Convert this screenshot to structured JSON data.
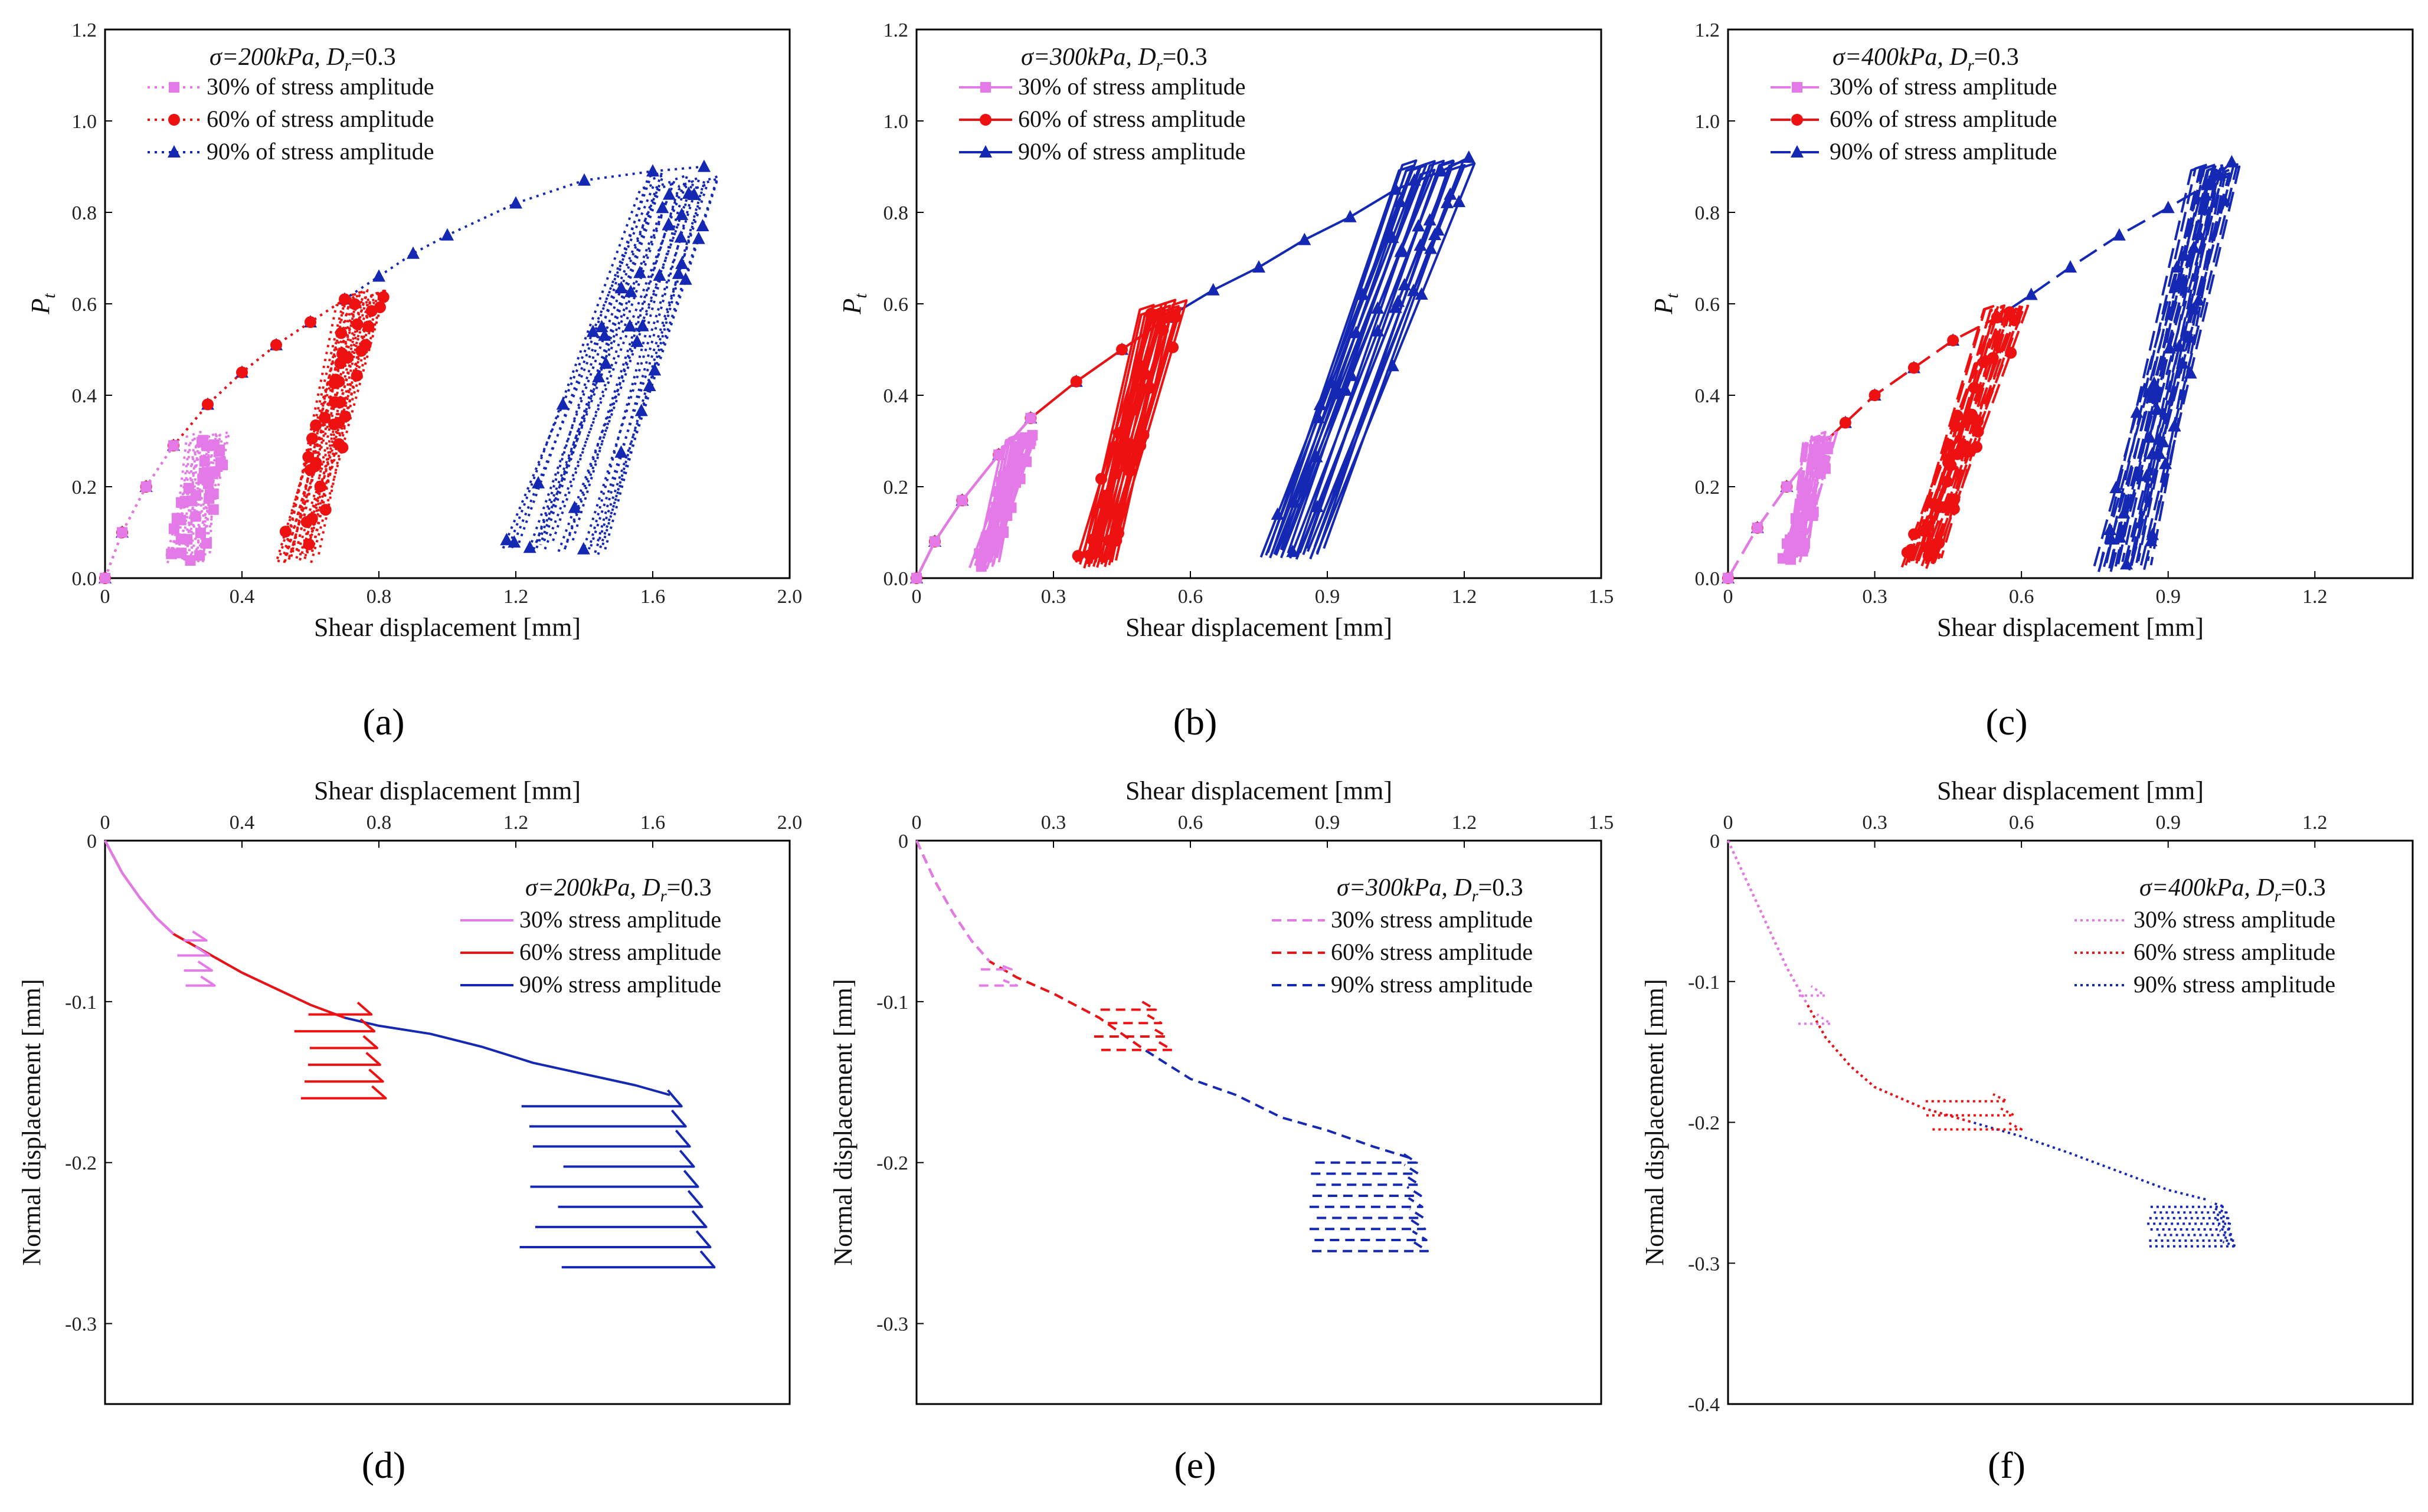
{
  "figure": {
    "panels": {
      "a": {
        "label": "(a)",
        "condition": "σ=200kPa, D",
        "condition_sub": "r",
        "condition_tail": "=0.3"
      },
      "b": {
        "label": "(b)",
        "condition": "σ=300kPa, D",
        "condition_sub": "r",
        "condition_tail": "=0.3"
      },
      "c": {
        "label": "(c)",
        "condition": "σ=400kPa, D",
        "condition_sub": "r",
        "condition_tail": "=0.3"
      },
      "d": {
        "label": "(d)",
        "condition": "σ=200kPa, D",
        "condition_sub": "r",
        "condition_tail": "=0.3"
      },
      "e": {
        "label": "(e)",
        "condition": "σ=300kPa, D",
        "condition_sub": "r",
        "condition_tail": "=0.3"
      },
      "f": {
        "label": "(f)",
        "condition": "σ=400kPa, D",
        "condition_sub": "r",
        "condition_tail": "=0.3"
      }
    },
    "labels": {
      "shear": "Shear displacement [mm]",
      "normal": "Normal displacement [mm]",
      "pt": "P",
      "pt_sub": "t"
    },
    "legend_top": [
      "30% of stress amplitude",
      "60% of stress amplitude",
      "90% of stress amplitude"
    ],
    "legend_bottom": [
      "30% stress amplitude",
      "60% stress amplitude",
      "90% stress amplitude"
    ],
    "colors": {
      "s30": "#e47ae8",
      "s60": "#ee1111",
      "s90": "#1428b4"
    }
  },
  "chart_data": [
    {
      "panel": "a",
      "type": "line",
      "style": "dotted-markers",
      "xlabel": "Shear displacement [mm]",
      "ylabel": "Pt",
      "xlim": [
        0,
        2.0
      ],
      "ylim": [
        0,
        1.2
      ],
      "xticks": [
        "0",
        "0.4",
        "0.8",
        "1.2",
        "1.6",
        "2.0"
      ],
      "yticks": [
        "0.0",
        "0.2",
        "0.4",
        "0.6",
        "0.8",
        "1.0",
        "1.2"
      ],
      "backbone": {
        "x": [
          0,
          0.05,
          0.12,
          0.2,
          0.3,
          0.4,
          0.5,
          0.6,
          0.7,
          0.8,
          0.9,
          1.0,
          1.2,
          1.4,
          1.6,
          1.75
        ],
        "y": [
          0,
          0.1,
          0.2,
          0.29,
          0.38,
          0.45,
          0.51,
          0.56,
          0.61,
          0.66,
          0.71,
          0.75,
          0.82,
          0.87,
          0.89,
          0.9
        ]
      },
      "series": [
        {
          "name": "30% of stress amplitude",
          "stop": 0.26,
          "band": {
            "x_low": [
              0.18,
              0.28
            ],
            "x_high": [
              0.28,
              0.36
            ],
            "ymin": 0.03,
            "ymax": 0.32
          }
        },
        {
          "name": "60% of stress amplitude",
          "stop": 0.74,
          "band": {
            "x_low": [
              0.5,
              0.6
            ],
            "x_high": [
              0.72,
              0.82
            ],
            "ymin": 0.03,
            "ymax": 0.63
          }
        },
        {
          "name": "90% of stress amplitude",
          "stop": 1.75,
          "band": {
            "x_low": [
              1.18,
              1.45
            ],
            "x_high": [
              1.6,
              1.8
            ],
            "ymin": 0.05,
            "ymax": 0.89
          }
        }
      ]
    },
    {
      "panel": "b",
      "type": "line",
      "style": "solid-markers",
      "xlabel": "Shear displacement [mm]",
      "ylabel": "Pt",
      "xlim": [
        0,
        1.5
      ],
      "ylim": [
        0,
        1.2
      ],
      "xticks": [
        "0",
        "0.3",
        "0.6",
        "0.9",
        "1.2",
        "1.5"
      ],
      "yticks": [
        "0.0",
        "0.2",
        "0.4",
        "0.6",
        "0.8",
        "1.0",
        "1.2"
      ],
      "backbone": {
        "x": [
          0,
          0.04,
          0.1,
          0.18,
          0.25,
          0.35,
          0.45,
          0.55,
          0.65,
          0.75,
          0.85,
          0.95,
          1.05,
          1.15,
          1.21
        ],
        "y": [
          0,
          0.08,
          0.17,
          0.27,
          0.35,
          0.43,
          0.5,
          0.57,
          0.63,
          0.68,
          0.74,
          0.79,
          0.85,
          0.89,
          0.92
        ]
      },
      "series": [
        {
          "name": "30% of stress amplitude",
          "stop": 0.25,
          "band": {
            "x_low": [
              0.12,
              0.17
            ],
            "x_high": [
              0.22,
              0.26
            ],
            "ymin": 0.02,
            "ymax": 0.32
          }
        },
        {
          "name": "60% of stress amplitude",
          "stop": 0.58,
          "band": {
            "x_low": [
              0.35,
              0.42
            ],
            "x_high": [
              0.52,
              0.59
            ],
            "ymin": 0.02,
            "ymax": 0.61
          }
        },
        {
          "name": "90% of stress amplitude",
          "stop": 1.21,
          "band": {
            "x_low": [
              0.75,
              0.87
            ],
            "x_high": [
              1.08,
              1.22
            ],
            "ymin": 0.04,
            "ymax": 0.92
          }
        }
      ]
    },
    {
      "panel": "c",
      "type": "line",
      "style": "dashed-markers",
      "xlabel": "Shear displacement [mm]",
      "ylabel": "Pt",
      "xlim": [
        0,
        1.4
      ],
      "ylim": [
        0,
        1.2
      ],
      "xticks": [
        "0",
        "0.3",
        "0.6",
        "0.9",
        "1.2"
      ],
      "yticks": [
        "0.0",
        "0.2",
        "0.4",
        "0.6",
        "0.8",
        "1.0",
        "1.2"
      ],
      "backbone": {
        "x": [
          0,
          0.06,
          0.12,
          0.18,
          0.24,
          0.3,
          0.38,
          0.46,
          0.55,
          0.62,
          0.7,
          0.8,
          0.9,
          0.98,
          1.03
        ],
        "y": [
          0,
          0.11,
          0.2,
          0.28,
          0.34,
          0.4,
          0.46,
          0.52,
          0.57,
          0.62,
          0.68,
          0.75,
          0.81,
          0.86,
          0.91
        ]
      },
      "series": [
        {
          "name": "30% of stress amplitude",
          "stop": 0.2,
          "band": {
            "x_low": [
              0.11,
              0.15
            ],
            "x_high": [
              0.18,
              0.22
            ],
            "ymin": 0.03,
            "ymax": 0.32
          }
        },
        {
          "name": "60% of stress amplitude",
          "stop": 0.6,
          "band": {
            "x_low": [
              0.36,
              0.42
            ],
            "x_high": [
              0.55,
              0.61
            ],
            "ymin": 0.02,
            "ymax": 0.6
          }
        },
        {
          "name": "90% of stress amplitude",
          "stop": 1.03,
          "band": {
            "x_low": [
              0.75,
              0.85
            ],
            "x_high": [
              0.98,
              1.05
            ],
            "ymin": 0.01,
            "ymax": 0.91
          }
        }
      ]
    },
    {
      "panel": "d",
      "type": "line",
      "style": "solid",
      "xlabel": "Shear displacement [mm]",
      "ylabel": "Normal displacement [mm]",
      "xlim": [
        0,
        2.0
      ],
      "ylim": [
        -0.35,
        0
      ],
      "xticks": [
        "0",
        "0.4",
        "0.8",
        "1.2",
        "1.6",
        "2.0"
      ],
      "yticks": [
        "0",
        "-0.1",
        "-0.2",
        "-0.3"
      ],
      "backbone": {
        "x": [
          0,
          0.05,
          0.1,
          0.15,
          0.2,
          0.3,
          0.4,
          0.5,
          0.6,
          0.7,
          0.8,
          0.95,
          1.1,
          1.25,
          1.4,
          1.55,
          1.65
        ],
        "y": [
          0,
          -0.02,
          -0.035,
          -0.048,
          -0.058,
          -0.07,
          -0.082,
          -0.092,
          -0.102,
          -0.11,
          -0.115,
          -0.12,
          -0.128,
          -0.138,
          -0.145,
          -0.152,
          -0.158
        ]
      },
      "series": [
        {
          "name": "30% stress amplitude",
          "stop": 0.27,
          "cycles": {
            "xa": [
              0.2,
              0.24
            ],
            "xb": [
              0.28,
              0.32
            ],
            "ytop": -0.062,
            "ybot": -0.09,
            "n": 4
          }
        },
        {
          "name": "60% stress amplitude",
          "stop": 0.72,
          "cycles": {
            "xa": [
              0.55,
              0.6
            ],
            "xb": [
              0.75,
              0.82
            ],
            "ytop": -0.108,
            "ybot": -0.16,
            "n": 6
          }
        },
        {
          "name": "90% stress amplitude",
          "stop": 1.65,
          "cycles": {
            "xa": [
              1.2,
              1.35
            ],
            "xb": [
              1.62,
              1.78
            ],
            "ytop": -0.165,
            "ybot": -0.265,
            "n": 9
          }
        }
      ]
    },
    {
      "panel": "e",
      "type": "line",
      "style": "dashed",
      "xlabel": "Shear displacement [mm]",
      "ylabel": "Normal displacement [mm]",
      "xlim": [
        0,
        1.5
      ],
      "ylim": [
        -0.35,
        0
      ],
      "xticks": [
        "0",
        "0.3",
        "0.6",
        "0.9",
        "1.2",
        "1.5"
      ],
      "yticks": [
        "0",
        "-0.1",
        "-0.2",
        "-0.3"
      ],
      "backbone": {
        "x": [
          0,
          0.04,
          0.08,
          0.12,
          0.16,
          0.22,
          0.3,
          0.4,
          0.5,
          0.6,
          0.7,
          0.8,
          0.9,
          1.0,
          1.08
        ],
        "y": [
          0,
          -0.025,
          -0.045,
          -0.062,
          -0.075,
          -0.085,
          -0.095,
          -0.11,
          -0.13,
          -0.148,
          -0.158,
          -0.172,
          -0.18,
          -0.19,
          -0.197
        ]
      },
      "series": [
        {
          "name": "30% stress amplitude",
          "stop": 0.2,
          "cycles": {
            "xa": [
              0.13,
              0.15
            ],
            "xb": [
              0.2,
              0.22
            ],
            "ytop": -0.08,
            "ybot": -0.09,
            "n": 2
          }
        },
        {
          "name": "60% stress amplitude",
          "stop": 0.55,
          "cycles": {
            "xa": [
              0.38,
              0.42
            ],
            "xb": [
              0.5,
              0.56
            ],
            "ytop": -0.105,
            "ybot": -0.13,
            "n": 4
          }
        },
        {
          "name": "90% stress amplitude",
          "stop": 1.08,
          "cycles": {
            "xa": [
              0.85,
              0.88
            ],
            "xb": [
              1.08,
              1.12
            ],
            "ytop": -0.2,
            "ybot": -0.255,
            "n": 9
          }
        }
      ]
    },
    {
      "panel": "f",
      "type": "line",
      "style": "dotted",
      "xlabel": "Shear displacement [mm]",
      "ylabel": "Normal displacement [mm]",
      "xlim": [
        0,
        1.4
      ],
      "ylim": [
        -0.4,
        0
      ],
      "xticks": [
        "0",
        "0.3",
        "0.6",
        "0.9",
        "1.2"
      ],
      "yticks": [
        "0",
        "-0.1",
        "-0.2",
        "-0.3",
        "-0.4"
      ],
      "backbone": {
        "x": [
          0,
          0.04,
          0.08,
          0.12,
          0.16,
          0.2,
          0.25,
          0.3,
          0.4,
          0.5,
          0.6,
          0.7,
          0.8,
          0.9,
          0.98
        ],
        "y": [
          0,
          -0.03,
          -0.06,
          -0.09,
          -0.115,
          -0.14,
          -0.16,
          -0.175,
          -0.19,
          -0.2,
          -0.21,
          -0.222,
          -0.235,
          -0.248,
          -0.255
        ]
      },
      "series": [
        {
          "name": "30% stress amplitude",
          "stop": 0.18,
          "cycles": {
            "xa": [
              0.14,
              0.15
            ],
            "xb": [
              0.19,
              0.21
            ],
            "ytop": -0.11,
            "ybot": -0.13,
            "n": 2
          }
        },
        {
          "name": "60% stress amplitude",
          "stop": 0.55,
          "cycles": {
            "xa": [
              0.4,
              0.42
            ],
            "xb": [
              0.55,
              0.6
            ],
            "ytop": -0.185,
            "ybot": -0.205,
            "n": 3
          }
        },
        {
          "name": "90% stress amplitude",
          "stop": 0.98,
          "cycles": {
            "xa": [
              0.85,
              0.88
            ],
            "xb": [
              1.0,
              1.04
            ],
            "ytop": -0.26,
            "ybot": -0.288,
            "n": 8
          }
        }
      ]
    }
  ]
}
